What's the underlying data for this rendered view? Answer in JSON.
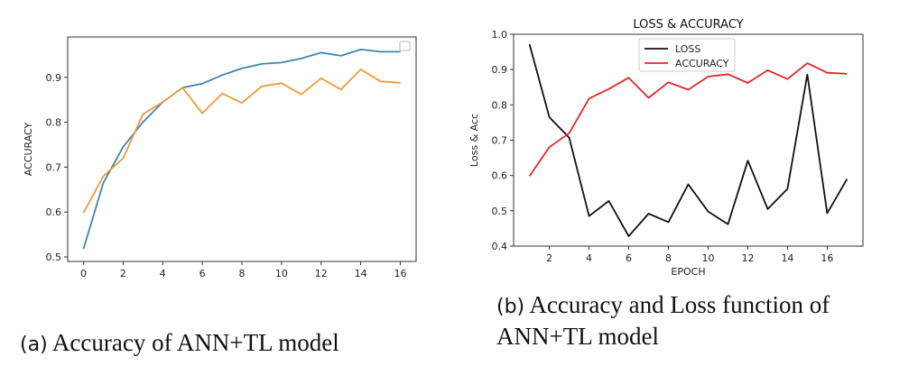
{
  "figure": {
    "caption_a_marker": "(a)",
    "caption_a_text": "Accuracy of ANN+TL model",
    "caption_b_marker": "(b)",
    "caption_b_line1": "Accuracy and Loss function of",
    "caption_b_line2": "ANN+TL model"
  },
  "chart_data": [
    {
      "type": "line",
      "title": "",
      "xlabel": "",
      "ylabel": "ACCURACY",
      "x": [
        0,
        1,
        2,
        3,
        4,
        5,
        6,
        7,
        8,
        9,
        10,
        11,
        12,
        13,
        14,
        15,
        16
      ],
      "xticks": [
        0,
        2,
        4,
        6,
        8,
        10,
        12,
        14,
        16
      ],
      "yticks": [
        0.5,
        0.6,
        0.7,
        0.8,
        0.9
      ],
      "xlim": [
        -0.8,
        16.8
      ],
      "ylim": [
        0.49,
        0.99
      ],
      "grid": false,
      "legend": "top-right (empty box)",
      "series": [
        {
          "color": "#3a86b2",
          "values": [
            0.518,
            0.665,
            0.745,
            0.8,
            0.845,
            0.877,
            0.886,
            0.905,
            0.92,
            0.93,
            0.933,
            0.942,
            0.955,
            0.948,
            0.962,
            0.957,
            0.957
          ]
        },
        {
          "color": "#ef9a3a",
          "values": [
            0.598,
            0.68,
            0.72,
            0.818,
            0.845,
            0.877,
            0.82,
            0.864,
            0.843,
            0.88,
            0.887,
            0.862,
            0.898,
            0.873,
            0.918,
            0.891,
            0.888
          ]
        }
      ]
    },
    {
      "type": "line",
      "title": "LOSS & ACCURACY",
      "xlabel": "EPOCH",
      "ylabel": "Loss & Acc",
      "x": [
        1,
        2,
        3,
        4,
        5,
        6,
        7,
        8,
        9,
        10,
        11,
        12,
        13,
        14,
        15,
        16,
        17
      ],
      "xticks": [
        2,
        4,
        6,
        8,
        10,
        12,
        14,
        16
      ],
      "yticks": [
        0.4,
        0.5,
        0.6,
        0.7,
        0.8,
        0.9,
        1.0
      ],
      "xlim": [
        0.2,
        17.8
      ],
      "ylim": [
        0.4,
        1.0
      ],
      "grid": false,
      "legend": "top-center",
      "series": [
        {
          "name": "LOSS",
          "color": "#111111",
          "values": [
            0.972,
            0.765,
            0.707,
            0.485,
            0.528,
            0.428,
            0.492,
            0.468,
            0.575,
            0.498,
            0.462,
            0.642,
            0.505,
            0.562,
            0.886,
            0.493,
            0.59
          ]
        },
        {
          "name": "ACCURACY",
          "color": "#e32626",
          "values": [
            0.598,
            0.68,
            0.72,
            0.818,
            0.845,
            0.877,
            0.82,
            0.864,
            0.843,
            0.88,
            0.887,
            0.862,
            0.898,
            0.873,
            0.918,
            0.891,
            0.888
          ]
        }
      ]
    }
  ]
}
